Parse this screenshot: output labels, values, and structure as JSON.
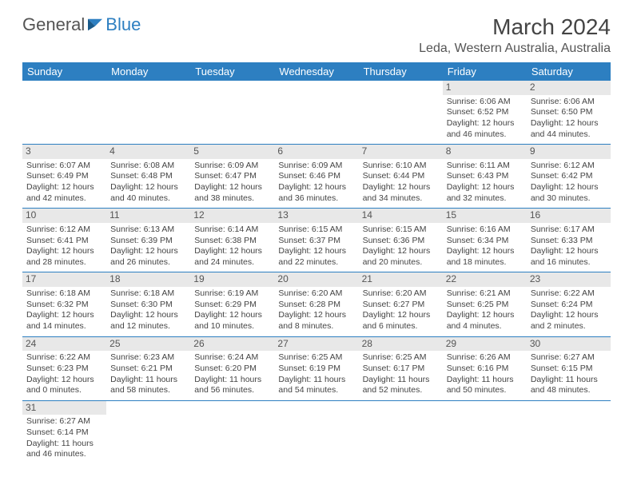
{
  "logo": {
    "part1": "General",
    "part2": "Blue"
  },
  "title": "March 2024",
  "location": "Leda, Western Australia, Australia",
  "colors": {
    "header_bg": "#2d7fc1",
    "daynum_bg": "#e8e8e8",
    "border": "#2d7fc1"
  },
  "day_headers": [
    "Sunday",
    "Monday",
    "Tuesday",
    "Wednesday",
    "Thursday",
    "Friday",
    "Saturday"
  ],
  "weeks": [
    [
      null,
      null,
      null,
      null,
      null,
      {
        "day": "1",
        "sunrise": "Sunrise: 6:06 AM",
        "sunset": "Sunset: 6:52 PM",
        "daylight1": "Daylight: 12 hours",
        "daylight2": "and 46 minutes."
      },
      {
        "day": "2",
        "sunrise": "Sunrise: 6:06 AM",
        "sunset": "Sunset: 6:50 PM",
        "daylight1": "Daylight: 12 hours",
        "daylight2": "and 44 minutes."
      }
    ],
    [
      {
        "day": "3",
        "sunrise": "Sunrise: 6:07 AM",
        "sunset": "Sunset: 6:49 PM",
        "daylight1": "Daylight: 12 hours",
        "daylight2": "and 42 minutes."
      },
      {
        "day": "4",
        "sunrise": "Sunrise: 6:08 AM",
        "sunset": "Sunset: 6:48 PM",
        "daylight1": "Daylight: 12 hours",
        "daylight2": "and 40 minutes."
      },
      {
        "day": "5",
        "sunrise": "Sunrise: 6:09 AM",
        "sunset": "Sunset: 6:47 PM",
        "daylight1": "Daylight: 12 hours",
        "daylight2": "and 38 minutes."
      },
      {
        "day": "6",
        "sunrise": "Sunrise: 6:09 AM",
        "sunset": "Sunset: 6:46 PM",
        "daylight1": "Daylight: 12 hours",
        "daylight2": "and 36 minutes."
      },
      {
        "day": "7",
        "sunrise": "Sunrise: 6:10 AM",
        "sunset": "Sunset: 6:44 PM",
        "daylight1": "Daylight: 12 hours",
        "daylight2": "and 34 minutes."
      },
      {
        "day": "8",
        "sunrise": "Sunrise: 6:11 AM",
        "sunset": "Sunset: 6:43 PM",
        "daylight1": "Daylight: 12 hours",
        "daylight2": "and 32 minutes."
      },
      {
        "day": "9",
        "sunrise": "Sunrise: 6:12 AM",
        "sunset": "Sunset: 6:42 PM",
        "daylight1": "Daylight: 12 hours",
        "daylight2": "and 30 minutes."
      }
    ],
    [
      {
        "day": "10",
        "sunrise": "Sunrise: 6:12 AM",
        "sunset": "Sunset: 6:41 PM",
        "daylight1": "Daylight: 12 hours",
        "daylight2": "and 28 minutes."
      },
      {
        "day": "11",
        "sunrise": "Sunrise: 6:13 AM",
        "sunset": "Sunset: 6:39 PM",
        "daylight1": "Daylight: 12 hours",
        "daylight2": "and 26 minutes."
      },
      {
        "day": "12",
        "sunrise": "Sunrise: 6:14 AM",
        "sunset": "Sunset: 6:38 PM",
        "daylight1": "Daylight: 12 hours",
        "daylight2": "and 24 minutes."
      },
      {
        "day": "13",
        "sunrise": "Sunrise: 6:15 AM",
        "sunset": "Sunset: 6:37 PM",
        "daylight1": "Daylight: 12 hours",
        "daylight2": "and 22 minutes."
      },
      {
        "day": "14",
        "sunrise": "Sunrise: 6:15 AM",
        "sunset": "Sunset: 6:36 PM",
        "daylight1": "Daylight: 12 hours",
        "daylight2": "and 20 minutes."
      },
      {
        "day": "15",
        "sunrise": "Sunrise: 6:16 AM",
        "sunset": "Sunset: 6:34 PM",
        "daylight1": "Daylight: 12 hours",
        "daylight2": "and 18 minutes."
      },
      {
        "day": "16",
        "sunrise": "Sunrise: 6:17 AM",
        "sunset": "Sunset: 6:33 PM",
        "daylight1": "Daylight: 12 hours",
        "daylight2": "and 16 minutes."
      }
    ],
    [
      {
        "day": "17",
        "sunrise": "Sunrise: 6:18 AM",
        "sunset": "Sunset: 6:32 PM",
        "daylight1": "Daylight: 12 hours",
        "daylight2": "and 14 minutes."
      },
      {
        "day": "18",
        "sunrise": "Sunrise: 6:18 AM",
        "sunset": "Sunset: 6:30 PM",
        "daylight1": "Daylight: 12 hours",
        "daylight2": "and 12 minutes."
      },
      {
        "day": "19",
        "sunrise": "Sunrise: 6:19 AM",
        "sunset": "Sunset: 6:29 PM",
        "daylight1": "Daylight: 12 hours",
        "daylight2": "and 10 minutes."
      },
      {
        "day": "20",
        "sunrise": "Sunrise: 6:20 AM",
        "sunset": "Sunset: 6:28 PM",
        "daylight1": "Daylight: 12 hours",
        "daylight2": "and 8 minutes."
      },
      {
        "day": "21",
        "sunrise": "Sunrise: 6:20 AM",
        "sunset": "Sunset: 6:27 PM",
        "daylight1": "Daylight: 12 hours",
        "daylight2": "and 6 minutes."
      },
      {
        "day": "22",
        "sunrise": "Sunrise: 6:21 AM",
        "sunset": "Sunset: 6:25 PM",
        "daylight1": "Daylight: 12 hours",
        "daylight2": "and 4 minutes."
      },
      {
        "day": "23",
        "sunrise": "Sunrise: 6:22 AM",
        "sunset": "Sunset: 6:24 PM",
        "daylight1": "Daylight: 12 hours",
        "daylight2": "and 2 minutes."
      }
    ],
    [
      {
        "day": "24",
        "sunrise": "Sunrise: 6:22 AM",
        "sunset": "Sunset: 6:23 PM",
        "daylight1": "Daylight: 12 hours",
        "daylight2": "and 0 minutes."
      },
      {
        "day": "25",
        "sunrise": "Sunrise: 6:23 AM",
        "sunset": "Sunset: 6:21 PM",
        "daylight1": "Daylight: 11 hours",
        "daylight2": "and 58 minutes."
      },
      {
        "day": "26",
        "sunrise": "Sunrise: 6:24 AM",
        "sunset": "Sunset: 6:20 PM",
        "daylight1": "Daylight: 11 hours",
        "daylight2": "and 56 minutes."
      },
      {
        "day": "27",
        "sunrise": "Sunrise: 6:25 AM",
        "sunset": "Sunset: 6:19 PM",
        "daylight1": "Daylight: 11 hours",
        "daylight2": "and 54 minutes."
      },
      {
        "day": "28",
        "sunrise": "Sunrise: 6:25 AM",
        "sunset": "Sunset: 6:17 PM",
        "daylight1": "Daylight: 11 hours",
        "daylight2": "and 52 minutes."
      },
      {
        "day": "29",
        "sunrise": "Sunrise: 6:26 AM",
        "sunset": "Sunset: 6:16 PM",
        "daylight1": "Daylight: 11 hours",
        "daylight2": "and 50 minutes."
      },
      {
        "day": "30",
        "sunrise": "Sunrise: 6:27 AM",
        "sunset": "Sunset: 6:15 PM",
        "daylight1": "Daylight: 11 hours",
        "daylight2": "and 48 minutes."
      }
    ],
    [
      {
        "day": "31",
        "sunrise": "Sunrise: 6:27 AM",
        "sunset": "Sunset: 6:14 PM",
        "daylight1": "Daylight: 11 hours",
        "daylight2": "and 46 minutes."
      },
      null,
      null,
      null,
      null,
      null,
      null
    ]
  ]
}
